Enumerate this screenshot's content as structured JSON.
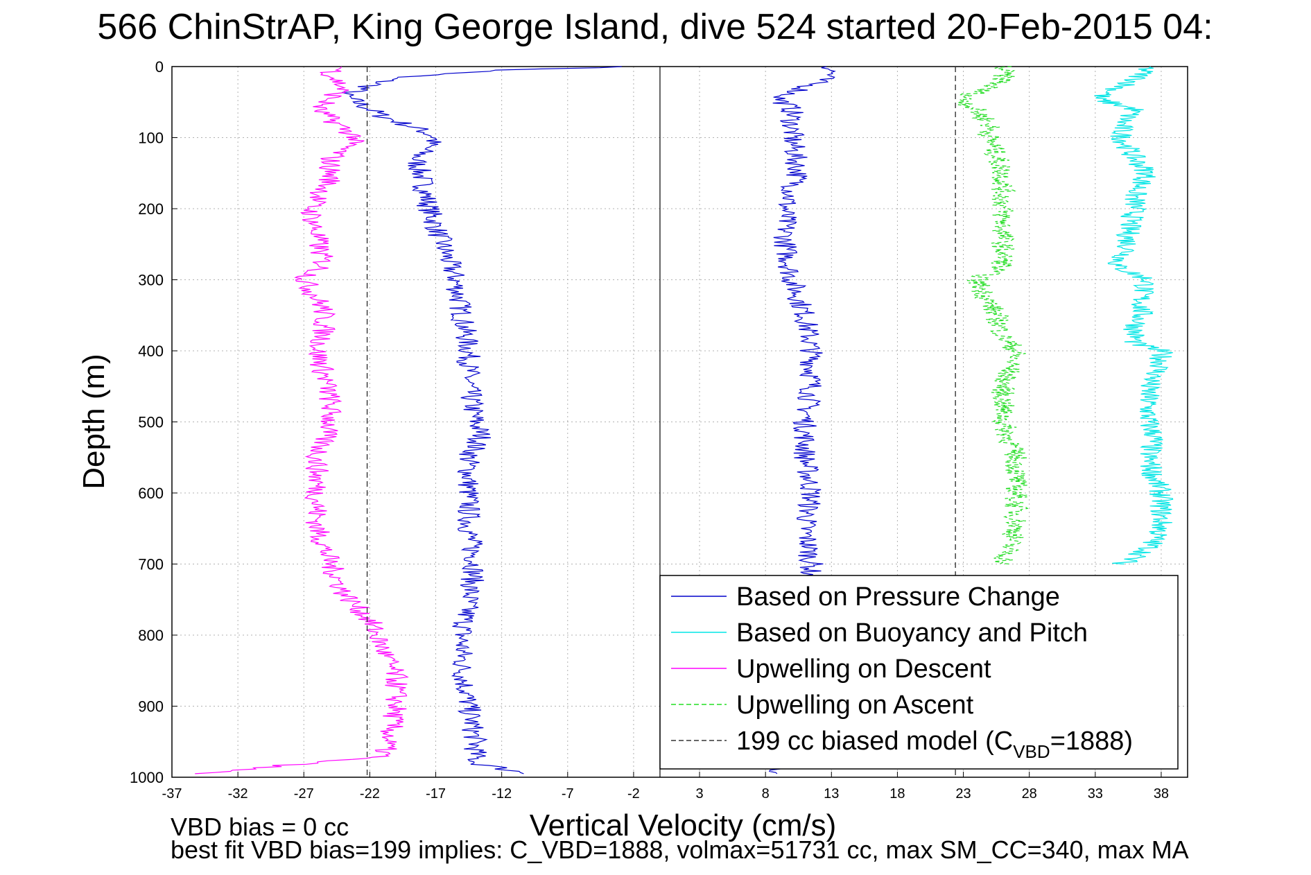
{
  "chart_data": {
    "type": "line",
    "title": "566 ChinStrAP, King George Island, dive 524 started 20-Feb-2015 04:",
    "xlabel": "Vertical Velocity (cm/s)",
    "ylabel": "Depth (m)",
    "xlim": [
      -37,
      40
    ],
    "ylim": [
      0,
      1000
    ],
    "y_reversed": true,
    "grid": true,
    "x_ticks": [
      -37,
      -32,
      -27,
      -22,
      -17,
      -12,
      -7,
      -2,
      3,
      8,
      13,
      18,
      23,
      28,
      33,
      38
    ],
    "y_ticks": [
      0,
      100,
      200,
      300,
      400,
      500,
      600,
      700,
      800,
      900,
      1000
    ],
    "legend_position": "bottom-right",
    "series": [
      {
        "name": "Based on Pressure Change",
        "color": "#0000cc",
        "style": "solid",
        "descent": {
          "depth": [
            0,
            5,
            15,
            40,
            70,
            90,
            100,
            130,
            160,
            200,
            250,
            300,
            350,
            400,
            450,
            500,
            520,
            550,
            600,
            650,
            700,
            750,
            800,
            850,
            900,
            950,
            980,
            995
          ],
          "velocity": [
            -2,
            -12,
            -20,
            -24,
            -21,
            -18,
            -17,
            -18.5,
            -18,
            -17.5,
            -16.5,
            -15.5,
            -15,
            -14.5,
            -14.5,
            -14,
            -13.5,
            -14.5,
            -14.5,
            -14.5,
            -14,
            -14.5,
            -15,
            -15,
            -14.5,
            -14,
            -14,
            -10
          ]
        },
        "ascent": {
          "depth": [
            995,
            980,
            950,
            900,
            850,
            800,
            750,
            700,
            650,
            600,
            550,
            500,
            450,
            400,
            350,
            300,
            250,
            200,
            150,
            100,
            60,
            45,
            30,
            10,
            0
          ],
          "velocity": [
            8,
            10,
            11,
            11,
            11.5,
            11,
            11,
            11.5,
            11,
            11.5,
            11,
            11,
            11.5,
            11.5,
            11,
            10,
            9.5,
            9.5,
            10.5,
            10,
            10,
            9,
            11,
            13,
            13
          ]
        }
      },
      {
        "name": "Based on Buoyancy and Pitch",
        "color": "#00e5e5",
        "style": "solid",
        "ascent": {
          "depth": [
            0,
            20,
            45,
            60,
            80,
            100,
            130,
            150,
            180,
            200,
            230,
            260,
            280,
            300,
            320,
            350,
            370,
            390,
            400,
            420,
            450,
            480,
            500,
            520,
            550,
            580,
            600,
            620,
            650,
            680,
            700
          ],
          "velocity": [
            37,
            36,
            33,
            36,
            35,
            35,
            36,
            37,
            36,
            36,
            35.5,
            35.5,
            34.5,
            37,
            36.5,
            36.5,
            36,
            36,
            38,
            38,
            37,
            37,
            37,
            37.5,
            37,
            37.5,
            38,
            38,
            38,
            37,
            35
          ]
        }
      },
      {
        "name": "Upwelling on Descent",
        "color": "#ff00ff",
        "style": "solid",
        "descent": {
          "depth": [
            0,
            10,
            30,
            60,
            100,
            130,
            160,
            200,
            240,
            280,
            300,
            340,
            380,
            400,
            430,
            470,
            500,
            550,
            600,
            650,
            700,
            740,
            780,
            820,
            860,
            900,
            940,
            970,
            995
          ],
          "velocity": [
            -24,
            -25,
            -24,
            -26,
            -23,
            -25,
            -25,
            -26.5,
            -26,
            -25.5,
            -27,
            -25.5,
            -25.5,
            -26,
            -25.5,
            -25,
            -25,
            -26,
            -26,
            -26,
            -25,
            -24,
            -22,
            -21,
            -20,
            -20,
            -20.5,
            -21,
            -35
          ]
        }
      },
      {
        "name": "Upwelling on Ascent",
        "color": "#22dd22",
        "style": "dashed",
        "ascent": {
          "depth": [
            0,
            20,
            45,
            80,
            100,
            150,
            200,
            250,
            280,
            300,
            350,
            380,
            400,
            450,
            500,
            550,
            600,
            650,
            700
          ],
          "velocity": [
            26,
            26,
            23,
            25,
            25,
            26,
            26,
            26,
            26,
            24,
            25.5,
            26,
            27,
            26,
            26,
            27,
            27,
            27,
            26
          ]
        }
      },
      {
        "name": "199 cc biased model (C_VBD=1888)",
        "legend_text": "199 cc biased model (C",
        "legend_subscript": "VBD",
        "legend_suffix": "=1888)",
        "color": "#333333",
        "style": "dashed",
        "descent_velocity": -22.2,
        "ascent_velocity": 22.4
      }
    ]
  },
  "bottom_text": {
    "line1": "VBD bias = 0 cc",
    "line2": "best fit VBD bias=199 implies: C_VBD=1888, volmax=51731 cc, max SM_CC=340, max MA"
  }
}
